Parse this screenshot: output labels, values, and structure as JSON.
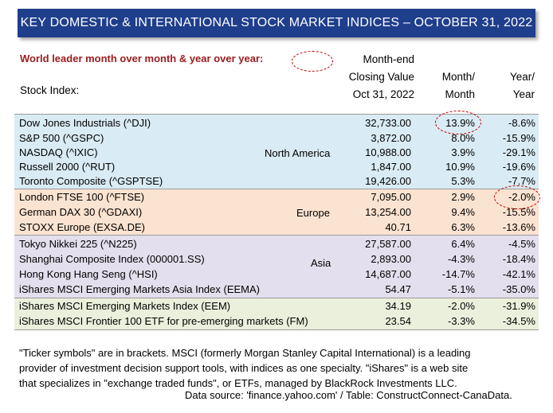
{
  "title": "KEY DOMESTIC & INTERNATIONAL STOCK MARKET INDICES – OCTOBER 31, 2022",
  "legend_text": "World leader month over month & year over year:",
  "headers": {
    "stock": "Stock Index:",
    "close_l1": "Month-end",
    "close_l2": "Closing Value",
    "close_l3": "Oct 31, 2022",
    "mom_l1": "Month/",
    "mom_l2": "Month",
    "yoy_l1": "Year/",
    "yoy_l2": "Year"
  },
  "regions": {
    "north_america": "North America",
    "europe": "Europe",
    "asia": "Asia"
  },
  "rows": [
    {
      "name": "Dow Jones Industrials (^DJI)",
      "close": "32,733.00",
      "mom": "13.9%",
      "yoy": "-8.6%"
    },
    {
      "name": "S&P 500 (^GSPC)",
      "close": "3,872.00",
      "mom": "8.0%",
      "yoy": "-15.9%"
    },
    {
      "name": "NASDAQ (^IXIC)",
      "close": "10,988.00",
      "mom": "3.9%",
      "yoy": "-29.1%"
    },
    {
      "name": "Russell  2000 (^RUT)",
      "close": "1,847.00",
      "mom": "10.9%",
      "yoy": "-19.6%"
    },
    {
      "name": "Toronto Composite (^GSPTSE)",
      "close": "19,426.00",
      "mom": "5.3%",
      "yoy": "-7.7%"
    },
    {
      "name": "London FTSE 100 (^FTSE)",
      "close": "7,095.00",
      "mom": "2.9%",
      "yoy": "-2.0%"
    },
    {
      "name": "German DAX 30 (^GDAXI)",
      "close": "13,254.00",
      "mom": "9.4%",
      "yoy": "-15.5%"
    },
    {
      "name": "STOXX Europe (EXSA.DE)",
      "close": "40.71",
      "mom": "6.3%",
      "yoy": "-13.6%"
    },
    {
      "name": "Tokyo Nikkei 225 (^N225)",
      "close": "27,587.00",
      "mom": "6.4%",
      "yoy": "-4.5%"
    },
    {
      "name": "Shanghai Composite Index (000001.SS)",
      "close": "2,893.00",
      "mom": "-4.3%",
      "yoy": "-18.4%"
    },
    {
      "name": "Hong Kong Hang Seng (^HSI)",
      "close": "14,687.00",
      "mom": "-14.7%",
      "yoy": "-42.1%"
    },
    {
      "name": "iShares MSCI Emerging Markets Asia Index (EEMA)",
      "close": "54.47",
      "mom": "-5.1%",
      "yoy": "-35.0%"
    },
    {
      "name": "iShares MSCI Emerging Markets Index (EEM)",
      "close": "34.19",
      "mom": "-2.0%",
      "yoy": "-31.9%"
    },
    {
      "name": "iShares MSCI Frontier 100 ETF for pre-emerging markets (FM)",
      "close": "23.54",
      "mom": "-3.3%",
      "yoy": "-34.5%"
    }
  ],
  "footnote": {
    "line1": "\"Ticker symbols\" are in brackets. MSCI (formerly Morgan Stanley Capital International) is a leading",
    "line2": "provider of investment decision support tools, with indices as one specialty. \"iShares\" is a web site",
    "line3": "that specializes in \"exchange traded funds\", or ETFs, managed by BlackRock Investments LLC."
  },
  "source": "Data source: 'finance.yahoo.com' / Table: ConstructConnect-CanaData.",
  "colors": {
    "title_bg": "#1f3e8c",
    "legend_text": "#9b1c1c",
    "highlight_oval": "#c00000",
    "band_north_america": "#d9ebf4",
    "band_europe": "#fbe3d1",
    "band_asia": "#e3dfee",
    "band_emerging": "#ebf0dc"
  }
}
